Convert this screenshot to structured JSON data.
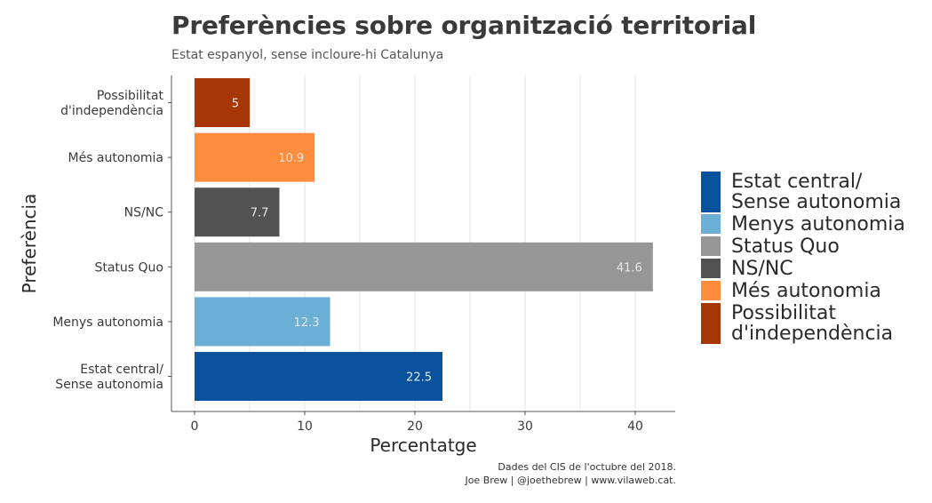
{
  "header": {
    "title": "Preferències sobre organització territorial",
    "subtitle": "Estat espanyol, sense incloure-hi Catalunya"
  },
  "caption": {
    "line1": "Dades del CIS de l'octubre del 2018.",
    "line2": "Joe Brew | @joethebrew | www.vilaweb.cat."
  },
  "chart_data": {
    "type": "bar",
    "orientation": "horizontal",
    "title": "Preferències sobre organització territorial",
    "subtitle": "Estat espanyol, sense incloure-hi Catalunya",
    "xlabel": "Percentatge",
    "ylabel": "Preferència",
    "xlim": [
      -2,
      44
    ],
    "xticks": [
      0,
      10,
      20,
      30,
      40
    ],
    "grid": true,
    "legend_position": "right",
    "categories": [
      "Estat central/\nSense autonomia",
      "Menys autonomia",
      "Status Quo",
      "NS/NC",
      "Més autonomia",
      "Possibilitat\nd'independència"
    ],
    "values": [
      22.5,
      12.3,
      41.6,
      7.7,
      10.9,
      5
    ],
    "data_labels": [
      "22.5",
      "12.3",
      "41.6",
      "7.7",
      "10.9",
      "5"
    ],
    "colors": [
      "#08519c",
      "#6baed6",
      "#969696",
      "#525252",
      "#fd8d3c",
      "#a63603"
    ]
  },
  "legend": [
    {
      "label": "Estat central/\nSense autonomia",
      "color": "#08519c"
    },
    {
      "label": "Menys autonomia",
      "color": "#6baed6"
    },
    {
      "label": "Status Quo",
      "color": "#969696"
    },
    {
      "label": "NS/NC",
      "color": "#525252"
    },
    {
      "label": "Més autonomia",
      "color": "#fd8d3c"
    },
    {
      "label": "Possibilitat\nd'independència",
      "color": "#a63603"
    }
  ]
}
